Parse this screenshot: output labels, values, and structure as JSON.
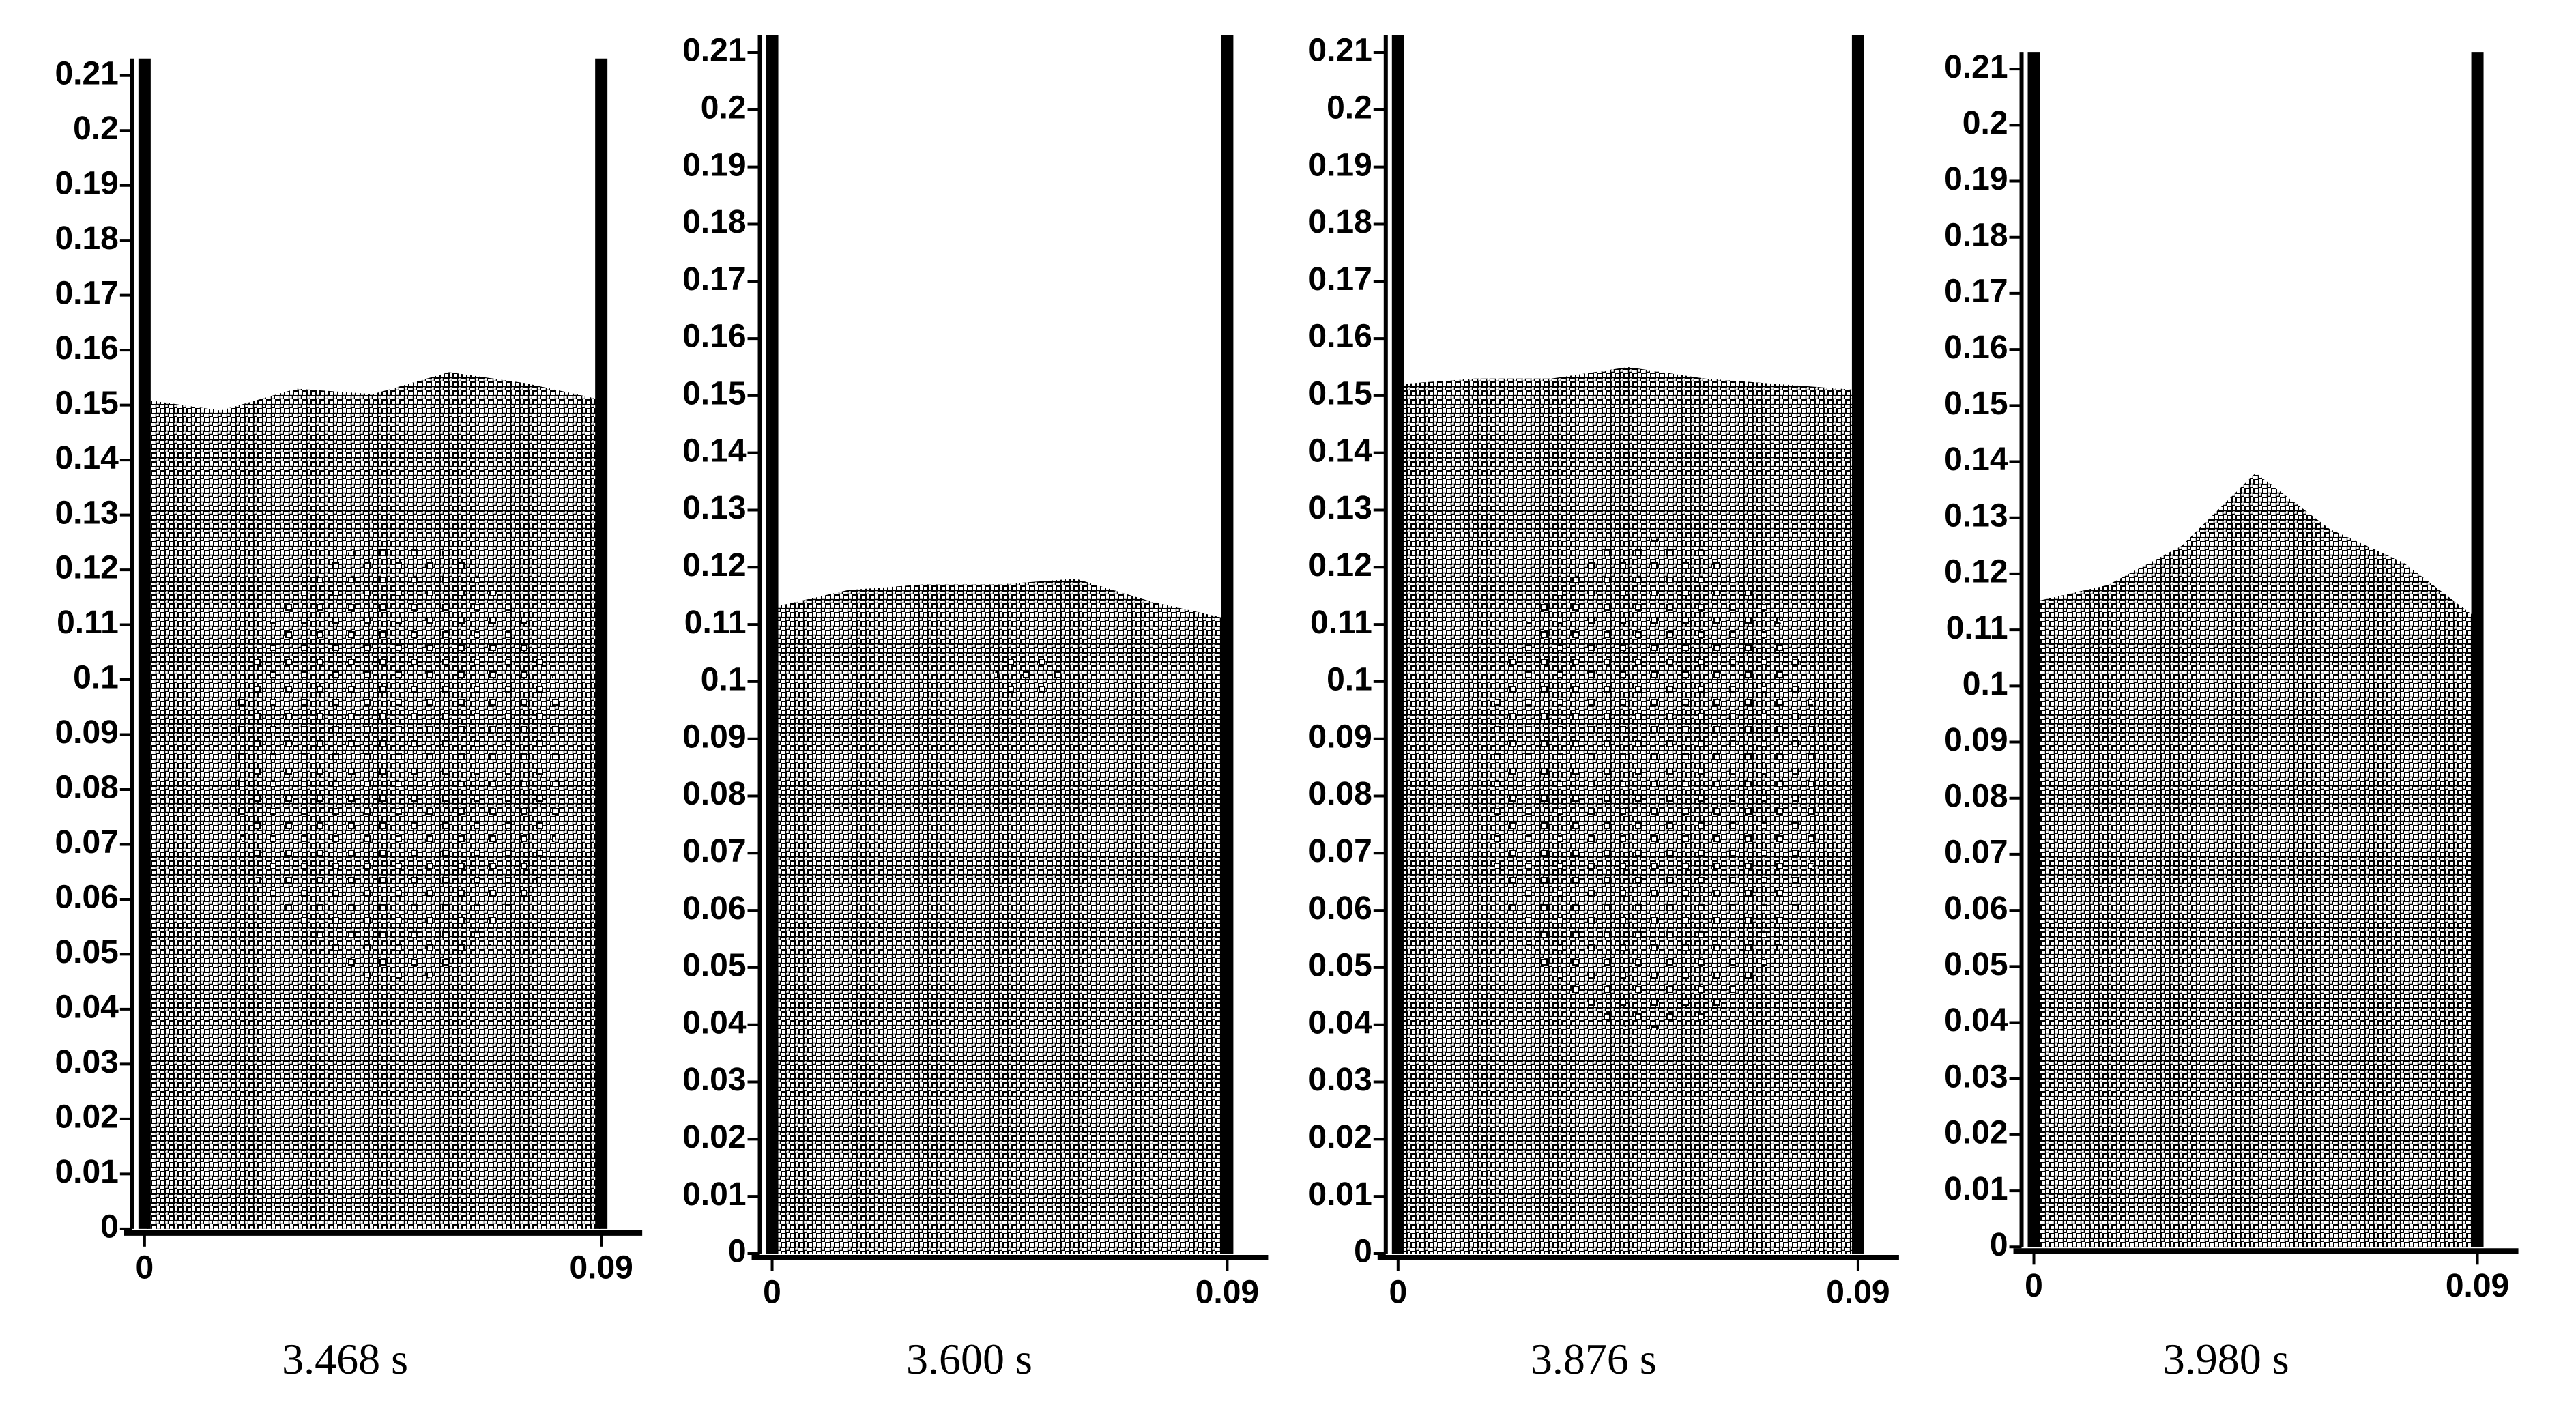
{
  "chart_data": [
    {
      "type": "area",
      "caption": "3.468 s",
      "xlim": [
        0,
        0.09
      ],
      "ylim": [
        0,
        0.21
      ],
      "xticks": [
        0,
        0.09
      ],
      "yticks": [
        0,
        0.01,
        0.02,
        0.03,
        0.04,
        0.05,
        0.06,
        0.07,
        0.08,
        0.09,
        0.1,
        0.11,
        0.12,
        0.13,
        0.14,
        0.15,
        0.16,
        0.17,
        0.18,
        0.19,
        0.2,
        0.21
      ],
      "x": [
        0,
        0.015,
        0.03,
        0.045,
        0.06,
        0.075,
        0.09
      ],
      "values": [
        0.151,
        0.149,
        0.153,
        0.152,
        0.156,
        0.154,
        0.151
      ],
      "bubbles": [
        {
          "x": 0.05,
          "y": 0.085,
          "width": 0.066,
          "height": 0.08
        }
      ]
    },
    {
      "type": "area",
      "caption": "3.600 s",
      "xlim": [
        0,
        0.09
      ],
      "ylim": [
        0,
        0.21
      ],
      "xticks": [
        0,
        0.09
      ],
      "yticks": [
        0,
        0.01,
        0.02,
        0.03,
        0.04,
        0.05,
        0.06,
        0.07,
        0.08,
        0.09,
        0.1,
        0.11,
        0.12,
        0.13,
        0.14,
        0.15,
        0.16,
        0.17,
        0.18,
        0.19,
        0.2,
        0.21
      ],
      "x": [
        0,
        0.015,
        0.03,
        0.045,
        0.06,
        0.075,
        0.09
      ],
      "values": [
        0.113,
        0.116,
        0.117,
        0.117,
        0.118,
        0.114,
        0.111
      ],
      "bubbles": [
        {
          "x": 0.052,
          "y": 0.101,
          "width": 0.016,
          "height": 0.008
        }
      ]
    },
    {
      "type": "area",
      "caption": "3.876 s",
      "xlim": [
        0,
        0.09
      ],
      "ylim": [
        0,
        0.21
      ],
      "xticks": [
        0,
        0.09
      ],
      "yticks": [
        0,
        0.01,
        0.02,
        0.03,
        0.04,
        0.05,
        0.06,
        0.07,
        0.08,
        0.09,
        0.1,
        0.11,
        0.12,
        0.13,
        0.14,
        0.15,
        0.16,
        0.17,
        0.18,
        0.19,
        0.2,
        0.21
      ],
      "x": [
        0,
        0.015,
        0.03,
        0.045,
        0.06,
        0.075,
        0.09
      ],
      "values": [
        0.152,
        0.153,
        0.153,
        0.155,
        0.153,
        0.152,
        0.151
      ],
      "bubbles": [
        {
          "x": 0.05,
          "y": 0.082,
          "width": 0.066,
          "height": 0.086
        }
      ]
    },
    {
      "type": "area",
      "caption": "3.980 s",
      "xlim": [
        0,
        0.09
      ],
      "ylim": [
        0,
        0.21
      ],
      "xticks": [
        0,
        0.09
      ],
      "yticks": [
        0,
        0.01,
        0.02,
        0.03,
        0.04,
        0.05,
        0.06,
        0.07,
        0.08,
        0.09,
        0.1,
        0.11,
        0.12,
        0.13,
        0.14,
        0.15,
        0.16,
        0.17,
        0.18,
        0.19,
        0.2,
        0.21
      ],
      "x": [
        0,
        0.015,
        0.03,
        0.045,
        0.06,
        0.075,
        0.09
      ],
      "values": [
        0.115,
        0.118,
        0.125,
        0.138,
        0.128,
        0.122,
        0.112
      ]
    }
  ]
}
